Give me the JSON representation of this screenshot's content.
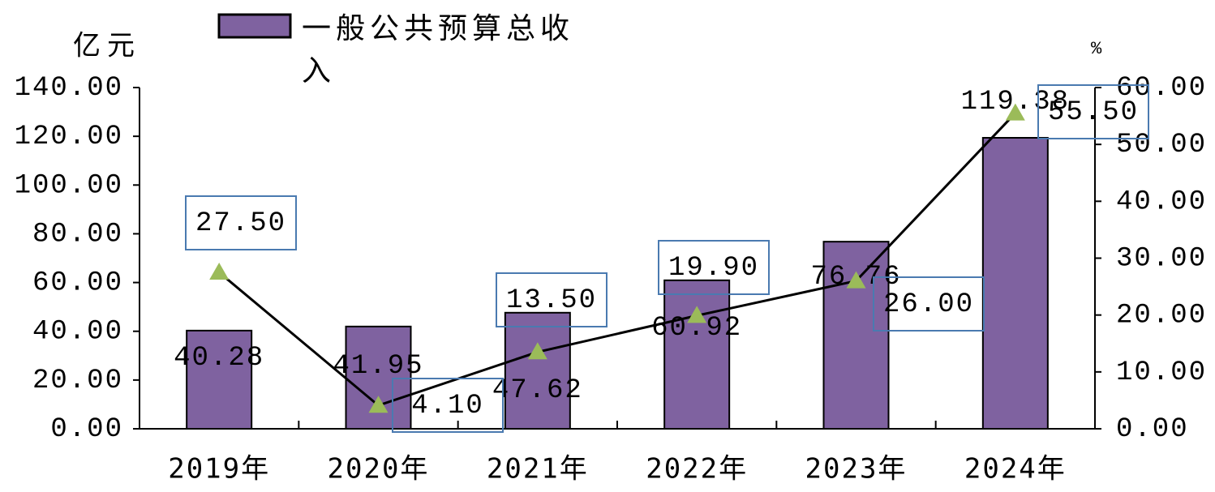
{
  "chart_data": {
    "type": "bar_line",
    "y_label": "亿元",
    "y2_label": "%",
    "categories": [
      "2019年",
      "2020年",
      "2021年",
      "2022年",
      "2023年",
      "2024年"
    ],
    "series": [
      {
        "name": "一般公共预算总收入",
        "type": "bar",
        "color": "#7f62a0",
        "values": [
          40.28,
          41.95,
          47.62,
          60.92,
          76.76,
          119.38
        ]
      },
      {
        "type": "line",
        "axis": "y2",
        "color": "#000000",
        "marker_color": "#9bbb59",
        "values": [
          27.5,
          4.1,
          13.5,
          19.9,
          26.0,
          55.5
        ],
        "value_labels": [
          "27.50",
          "4.10",
          "13.50",
          "19.90",
          "26.00",
          "55.50"
        ]
      }
    ],
    "ylim": [
      0,
      140
    ],
    "yticks": [
      {
        "value": 0,
        "label": "0.00"
      },
      {
        "value": 20,
        "label": "20.00"
      },
      {
        "value": 40,
        "label": "40.00"
      },
      {
        "value": 60,
        "label": "60.00"
      },
      {
        "value": 80,
        "label": "80.00"
      },
      {
        "value": 100,
        "label": "100.00"
      },
      {
        "value": 120,
        "label": "120.00"
      },
      {
        "value": 140,
        "label": "140.00"
      }
    ],
    "y2lim": [
      0,
      60
    ],
    "y2ticks": [
      {
        "value": 0,
        "label": "0.00"
      },
      {
        "value": 10,
        "label": "10.00"
      },
      {
        "value": 20,
        "label": "20.00"
      },
      {
        "value": 30,
        "label": "30.00"
      },
      {
        "value": 40,
        "label": "40.00"
      },
      {
        "value": 50,
        "label": "50.00"
      },
      {
        "value": 60,
        "label": "60.00"
      }
    ],
    "legend": "top"
  }
}
